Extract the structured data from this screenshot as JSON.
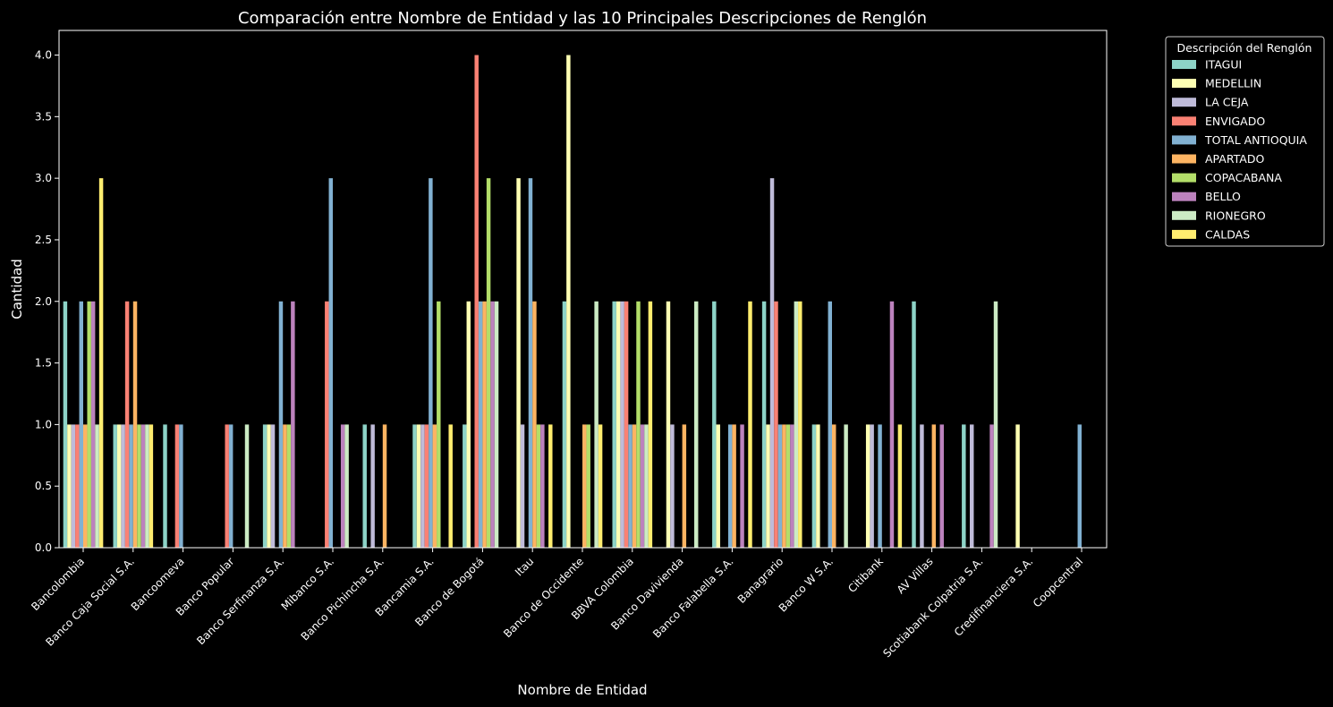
{
  "chart_data": {
    "type": "bar",
    "title": "Comparación entre Nombre de Entidad y las 10 Principales Descripciones de Renglón",
    "xlabel": "Nombre de Entidad",
    "ylabel": "Cantidad",
    "ylim": [
      0,
      4.2
    ],
    "yticks": [
      "0.0",
      "0.5",
      "1.0",
      "1.5",
      "2.0",
      "2.5",
      "3.0",
      "3.5",
      "4.0"
    ],
    "grid": false,
    "legend": {
      "title": "Descripción del Renglón",
      "placement": "outside-top-right"
    },
    "categories": [
      "Bancolombia",
      "Banco Caja Social S.A.",
      "Bancoomeva",
      "Banco Popular",
      "Banco Serfinanza S.A.",
      "Mibanco S.A.",
      "Banco Pichincha S.A.",
      "Bancamia S.A.",
      "Banco de Bogotá",
      "Itau",
      "Banco de Occidente",
      "BBVA Colombia",
      "Banco Davivienda",
      "Banco Falabella S.A.",
      "Banagrario",
      "Banco W S.A.",
      "Citibank",
      "AV Villas",
      "Scotiabank Colpatria S.A.",
      "Credifinanciera S.A.",
      "Coopcentral"
    ],
    "series": [
      {
        "name": "ITAGUI",
        "color": "#8dd3c7",
        "values": [
          2,
          1,
          1,
          0,
          1,
          0,
          1,
          1,
          1,
          0,
          2,
          2,
          0,
          2,
          2,
          1,
          0,
          2,
          1,
          0,
          0
        ]
      },
      {
        "name": "MEDELLIN",
        "color": "#feffb3",
        "values": [
          1,
          1,
          0,
          0,
          1,
          0,
          0,
          1,
          2,
          3,
          4,
          2,
          2,
          1,
          1,
          1,
          1,
          0,
          0,
          1,
          0
        ]
      },
      {
        "name": "LA CEJA",
        "color": "#bfbbd9",
        "values": [
          1,
          1,
          0,
          0,
          1,
          0,
          1,
          1,
          0,
          1,
          0,
          2,
          1,
          0,
          3,
          0,
          1,
          1,
          1,
          0,
          0
        ]
      },
      {
        "name": "ENVIGADO",
        "color": "#fa8174",
        "values": [
          1,
          2,
          1,
          1,
          0,
          2,
          0,
          1,
          4,
          0,
          0,
          2,
          0,
          0,
          2,
          0,
          0,
          0,
          0,
          0,
          0
        ]
      },
      {
        "name": "TOTAL ANTIOQUIA",
        "color": "#81b1d2",
        "values": [
          2,
          1,
          1,
          1,
          2,
          3,
          0,
          3,
          2,
          3,
          0,
          1,
          0,
          1,
          1,
          2,
          1,
          0,
          0,
          0,
          1
        ]
      },
      {
        "name": "APARTADO",
        "color": "#fdb462",
        "values": [
          1,
          2,
          0,
          0,
          1,
          0,
          1,
          1,
          2,
          2,
          1,
          1,
          1,
          1,
          1,
          1,
          0,
          1,
          0,
          0,
          0
        ]
      },
      {
        "name": "COPACABANA",
        "color": "#b3de69",
        "values": [
          2,
          1,
          0,
          0,
          1,
          0,
          0,
          2,
          3,
          1,
          1,
          2,
          0,
          0,
          1,
          0,
          0,
          0,
          0,
          0,
          0
        ]
      },
      {
        "name": "BELLO",
        "color": "#bc82bd",
        "values": [
          2,
          1,
          0,
          0,
          2,
          1,
          0,
          0,
          2,
          1,
          0,
          1,
          0,
          1,
          1,
          0,
          2,
          1,
          1,
          0,
          0
        ]
      },
      {
        "name": "RIONEGRO",
        "color": "#ccebc4",
        "values": [
          1,
          1,
          0,
          1,
          0,
          1,
          0,
          0,
          2,
          0,
          2,
          1,
          2,
          0,
          2,
          1,
          0,
          0,
          2,
          0,
          0
        ]
      },
      {
        "name": "CALDAS",
        "color": "#ffed6f",
        "values": [
          3,
          1,
          0,
          0,
          0,
          0,
          0,
          1,
          0,
          1,
          1,
          2,
          0,
          2,
          2,
          0,
          1,
          0,
          0,
          0,
          0
        ]
      }
    ]
  }
}
